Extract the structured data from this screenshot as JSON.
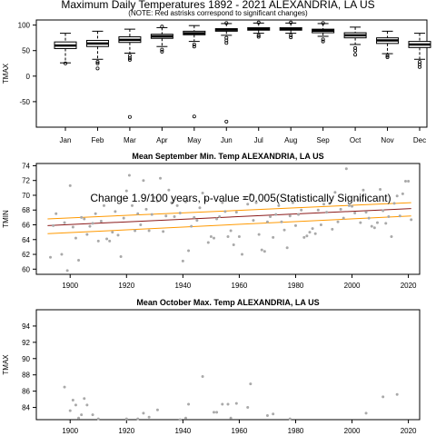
{
  "page": {
    "title": "Maximum Daily Temperatures 1892 - 2021 ALEXANDRIA, LA US",
    "subtitle": "(NOTE: Red astrisks correspond to significant changes)"
  },
  "chart_data": [
    {
      "type": "box",
      "ylabel": "TMAX",
      "ylim": [
        -100,
        110
      ],
      "yticks": [
        -50,
        0,
        50,
        100
      ],
      "categories": [
        "Jan",
        "Feb",
        "Mar",
        "Apr",
        "May",
        "Jun",
        "Jul",
        "Aug",
        "Sep",
        "Oct",
        "Nov",
        "Dec"
      ],
      "boxes": [
        {
          "lw": 26,
          "q1": 54,
          "med": 60,
          "q3": 67,
          "uw": 84,
          "outliers": [
            25
          ]
        },
        {
          "lw": 33,
          "q1": 58,
          "med": 64,
          "q3": 70,
          "uw": 88,
          "outliers": [
            28,
            25,
            15
          ]
        },
        {
          "lw": 45,
          "q1": 66,
          "med": 71,
          "q3": 77,
          "uw": 92,
          "outliers": [
            40,
            35,
            32,
            -80
          ]
        },
        {
          "lw": 58,
          "q1": 74,
          "med": 78,
          "q3": 82,
          "uw": 95,
          "outliers": [
            52,
            48,
            97
          ]
        },
        {
          "lw": 68,
          "q1": 81,
          "med": 84,
          "q3": 88,
          "uw": 99,
          "outliers": [
            62,
            58,
            -79
          ]
        },
        {
          "lw": 80,
          "q1": 88,
          "med": 91,
          "q3": 93,
          "uw": 103,
          "outliers": [
            75,
            70,
            65,
            104,
            -89
          ]
        },
        {
          "lw": 84,
          "q1": 90,
          "med": 92,
          "q3": 95,
          "uw": 104,
          "outliers": [
            80,
            77,
            105
          ]
        },
        {
          "lw": 84,
          "q1": 90,
          "med": 92,
          "q3": 95,
          "uw": 104,
          "outliers": [
            80,
            76,
            105
          ]
        },
        {
          "lw": 78,
          "q1": 85,
          "med": 89,
          "q3": 92,
          "uw": 103,
          "outliers": [
            72,
            68,
            104
          ]
        },
        {
          "lw": 62,
          "q1": 75,
          "med": 80,
          "q3": 85,
          "uw": 96,
          "outliers": [
            55,
            50,
            42
          ]
        },
        {
          "lw": 44,
          "q1": 64,
          "med": 70,
          "q3": 75,
          "uw": 88,
          "outliers": [
            40,
            37
          ]
        },
        {
          "lw": 33,
          "q1": 56,
          "med": 62,
          "q3": 68,
          "uw": 84,
          "outliers": [
            28,
            23,
            18
          ]
        }
      ]
    },
    {
      "type": "scatter",
      "title": "Mean September Min. Temp ALEXANDRIA, LA US",
      "ylabel": "TMIN",
      "xlim": [
        1888,
        2024
      ],
      "ylim": [
        59.3,
        74.3
      ],
      "xticks": [
        1900,
        1920,
        1940,
        1960,
        1980,
        2000,
        2020
      ],
      "yticks": [
        60,
        62,
        64,
        66,
        68,
        70,
        72,
        74
      ],
      "annotation": "Change 1.9/100 years, p-value =0.005(Statistically Significant)",
      "trend": {
        "x": [
          1892,
          2021
        ],
        "y": [
          65.9,
          68.2
        ],
        "color": "#8b1a1a"
      },
      "band_upper": {
        "x": [
          1892,
          2021
        ],
        "y": [
          66.8,
          69.0
        ],
        "color": "#ff9900"
      },
      "band_lower": {
        "x": [
          1892,
          2021
        ],
        "y": [
          64.8,
          67.2
        ],
        "color": "#ff9900"
      },
      "point_color": "#a9a9a9",
      "points": [
        [
          1893,
          61.6
        ],
        [
          1894,
          65.9
        ],
        [
          1895,
          67.5
        ],
        [
          1897,
          62.0
        ],
        [
          1898,
          66.3
        ],
        [
          1899,
          59.8
        ],
        [
          1900,
          71.3
        ],
        [
          1901,
          65.7
        ],
        [
          1902,
          64.2
        ],
        [
          1903,
          61.2
        ],
        [
          1904,
          67.0
        ],
        [
          1905,
          66.8
        ],
        [
          1906,
          64.7
        ],
        [
          1907,
          65.8
        ],
        [
          1908,
          66.2
        ],
        [
          1909,
          67.5
        ],
        [
          1910,
          63.8
        ],
        [
          1911,
          66.5
        ],
        [
          1912,
          68.6
        ],
        [
          1913,
          64.1
        ],
        [
          1914,
          63.8
        ],
        [
          1915,
          65.0
        ],
        [
          1916,
          67.8
        ],
        [
          1917,
          64.6
        ],
        [
          1918,
          61.7
        ],
        [
          1919,
          66.9
        ],
        [
          1920,
          70.6
        ],
        [
          1921,
          72.7
        ],
        [
          1922,
          68.6
        ],
        [
          1923,
          65.2
        ],
        [
          1924,
          67.5
        ],
        [
          1925,
          66.0
        ],
        [
          1926,
          72.0
        ],
        [
          1927,
          68.1
        ],
        [
          1928,
          65.2
        ],
        [
          1929,
          67.4
        ],
        [
          1930,
          69.7
        ],
        [
          1931,
          69.2
        ],
        [
          1932,
          72.3
        ],
        [
          1933,
          65.1
        ],
        [
          1934,
          67.2
        ],
        [
          1935,
          70.7
        ],
        [
          1936,
          69.0
        ],
        [
          1937,
          67.1
        ],
        [
          1938,
          68.6
        ],
        [
          1939,
          67.6
        ],
        [
          1940,
          61.1
        ],
        [
          1941,
          69.1
        ],
        [
          1942,
          62.5
        ],
        [
          1943,
          65.8
        ],
        [
          1944,
          67.0
        ],
        [
          1945,
          66.6
        ],
        [
          1946,
          68.3
        ],
        [
          1947,
          70.3
        ],
        [
          1948,
          69.4
        ],
        [
          1949,
          63.6
        ],
        [
          1950,
          64.4
        ],
        [
          1951,
          64.2
        ],
        [
          1952,
          66.8
        ],
        [
          1953,
          67.1
        ],
        [
          1954,
          69.0
        ],
        [
          1955,
          67.8
        ],
        [
          1956,
          64.4
        ],
        [
          1957,
          65.2
        ],
        [
          1958,
          63.3
        ],
        [
          1959,
          67.7
        ],
        [
          1960,
          64.4
        ],
        [
          1961,
          62.0
        ],
        [
          1962,
          69.6
        ],
        [
          1963,
          68.8
        ],
        [
          1964,
          70.1
        ],
        [
          1965,
          66.6
        ],
        [
          1966,
          69.0
        ],
        [
          1967,
          64.7
        ],
        [
          1968,
          62.6
        ],
        [
          1969,
          62.4
        ],
        [
          1970,
          66.4
        ],
        [
          1971,
          67.1
        ],
        [
          1972,
          64.3
        ],
        [
          1973,
          67.4
        ],
        [
          1974,
          68.6
        ],
        [
          1975,
          66.4
        ],
        [
          1976,
          65.3
        ],
        [
          1977,
          62.9
        ],
        [
          1978,
          67.2
        ],
        [
          1979,
          69.0
        ],
        [
          1980,
          65.9
        ],
        [
          1981,
          67.4
        ],
        [
          1982,
          68.0
        ],
        [
          1983,
          64.3
        ],
        [
          1984,
          64.5
        ],
        [
          1985,
          65.0
        ],
        [
          1986,
          65.5
        ],
        [
          1987,
          64.8
        ],
        [
          1988,
          68.0
        ],
        [
          1989,
          66.0
        ],
        [
          1990,
          68.8
        ],
        [
          1991,
          67.7
        ],
        [
          1992,
          68.9
        ],
        [
          1993,
          65.4
        ],
        [
          1994,
          70.4
        ],
        [
          1995,
          66.4
        ],
        [
          1996,
          68.1
        ],
        [
          1997,
          66.9
        ],
        [
          1998,
          73.6
        ],
        [
          1999,
          68.6
        ],
        [
          2000,
          68.5
        ],
        [
          2001,
          67.6
        ],
        [
          2002,
          69.4
        ],
        [
          2003,
          66.3
        ],
        [
          2004,
          70.7
        ],
        [
          2005,
          67.7
        ],
        [
          2006,
          66.9
        ],
        [
          2007,
          65.8
        ],
        [
          2008,
          65.6
        ],
        [
          2009,
          66.3
        ],
        [
          2010,
          70.8
        ],
        [
          2011,
          67.9
        ],
        [
          2012,
          66.2
        ],
        [
          2013,
          67.1
        ],
        [
          2014,
          64.4
        ],
        [
          2015,
          68.9
        ],
        [
          2016,
          69.9
        ],
        [
          2017,
          67.2
        ],
        [
          2018,
          70.2
        ],
        [
          2019,
          71.9
        ],
        [
          2020,
          71.9
        ],
        [
          2021,
          66.7
        ]
      ]
    },
    {
      "type": "scatter",
      "title": "Mean October Max. Temp ALEXANDRIA, LA US",
      "ylabel": "TMAX",
      "xlim": [
        1888,
        2024
      ],
      "ylim": [
        82.5,
        96
      ],
      "xticks": [
        1900,
        1920,
        1940,
        1960,
        1980,
        2000,
        2020
      ],
      "yticks": [
        84,
        86,
        88,
        90,
        92,
        94
      ],
      "point_color": "#a9a9a9",
      "points": [
        [
          1898,
          86.5
        ],
        [
          1900,
          83.6
        ],
        [
          1901,
          84.9
        ],
        [
          1902,
          84.3
        ],
        [
          1903,
          82.7
        ],
        [
          1904,
          83.1
        ],
        [
          1905,
          85.1
        ],
        [
          1906,
          84.3
        ],
        [
          1908,
          83.1
        ],
        [
          1910,
          82.6
        ],
        [
          1920,
          82.6
        ],
        [
          1924,
          82.6
        ],
        [
          1926,
          83.3
        ],
        [
          1928,
          82.8
        ],
        [
          1931,
          83.7
        ],
        [
          1939,
          82.5
        ],
        [
          1941,
          82.7
        ],
        [
          1942,
          84.4
        ],
        [
          1947,
          87.8
        ],
        [
          1951,
          83.4
        ],
        [
          1952,
          83.4
        ],
        [
          1954,
          84.4
        ],
        [
          1956,
          84.4
        ],
        [
          1957,
          82.7
        ],
        [
          1959,
          84.5
        ],
        [
          1963,
          84.0
        ],
        [
          1964,
          86.9
        ],
        [
          1970,
          83.0
        ],
        [
          1972,
          83.2
        ],
        [
          1978,
          82.6
        ],
        [
          2005,
          83.3
        ],
        [
          2011,
          85.3
        ],
        [
          2016,
          85.6
        ]
      ]
    }
  ]
}
